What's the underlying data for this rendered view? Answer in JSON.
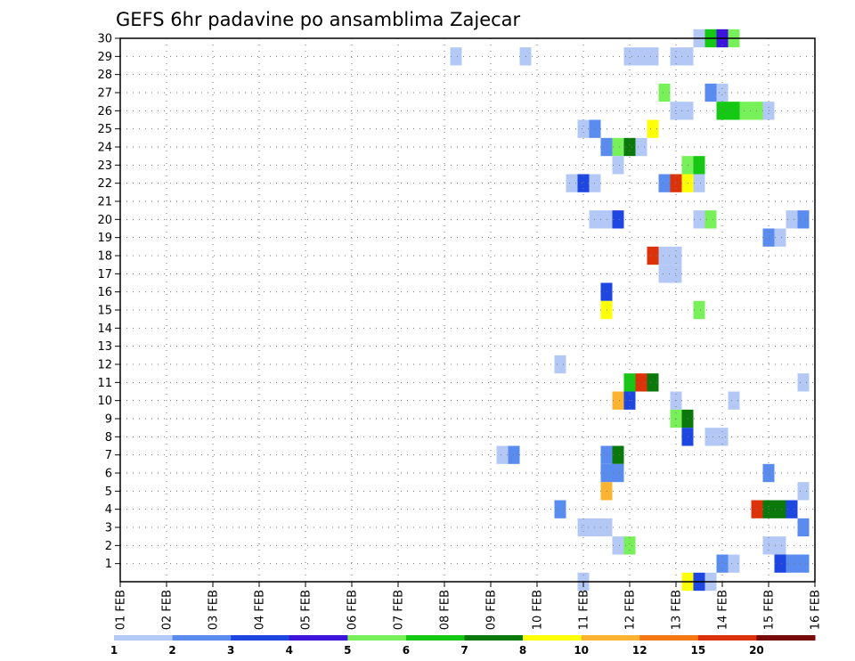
{
  "chart_data": {
    "type": "heatmap",
    "title": "GEFS 6hr padavine po ansamblima Zajecar",
    "x_ticks": [
      "01 FEB",
      "02 FEB",
      "03 FEB",
      "04 FEB",
      "05 FEB",
      "06 FEB",
      "07 FEB",
      "08 FEB",
      "09 FEB",
      "10 FEB",
      "11 FEB",
      "12 FEB",
      "13 FEB",
      "14 FEB",
      "15 FEB",
      "16 FEB"
    ],
    "xlim_days": [
      1,
      16
    ],
    "y_ticks": [
      1,
      2,
      3,
      4,
      5,
      6,
      7,
      8,
      9,
      10,
      11,
      12,
      13,
      14,
      15,
      16,
      17,
      18,
      19,
      20,
      21,
      22,
      23,
      24,
      25,
      26,
      27,
      28,
      29,
      30
    ],
    "ylim": [
      0,
      30
    ],
    "grid": true,
    "legend": {
      "placement": "bottom",
      "labels": [
        "1",
        "2",
        "3",
        "4",
        "5",
        "6",
        "7",
        "8",
        "10",
        "12",
        "15",
        "20"
      ],
      "colors": [
        "#b4c8f5",
        "#5a8cf0",
        "#1e46e1",
        "#3c14dc",
        "#78f05a",
        "#14c814",
        "#0a780a",
        "#ffff0a",
        "#fab432",
        "#f57814",
        "#dc320a",
        "#780a0a"
      ]
    },
    "cell_columns": [
      "day",
      "member",
      "level"
    ],
    "cells": [
      [
        8.25,
        29,
        1
      ],
      [
        9.75,
        29,
        1
      ],
      [
        12,
        29,
        1
      ],
      [
        12.25,
        29,
        1
      ],
      [
        12.5,
        29,
        1
      ],
      [
        13,
        29,
        1
      ],
      [
        13.25,
        29,
        1
      ],
      [
        13.5,
        30,
        1
      ],
      [
        13.75,
        30,
        6
      ],
      [
        14,
        30,
        4
      ],
      [
        14.25,
        30,
        5
      ],
      [
        12.75,
        27,
        5
      ],
      [
        13.75,
        27,
        2
      ],
      [
        14,
        27,
        1
      ],
      [
        13,
        26,
        1
      ],
      [
        13.25,
        26,
        1
      ],
      [
        14,
        26,
        6
      ],
      [
        14.25,
        26,
        6
      ],
      [
        14.5,
        26,
        5
      ],
      [
        14.75,
        26,
        5
      ],
      [
        15,
        26,
        1
      ],
      [
        11,
        25,
        1
      ],
      [
        11.25,
        25,
        2
      ],
      [
        12.5,
        25,
        8
      ],
      [
        11.5,
        24,
        2
      ],
      [
        11.75,
        24,
        5
      ],
      [
        12,
        24,
        7
      ],
      [
        12.25,
        24,
        1
      ],
      [
        11.75,
        23,
        1
      ],
      [
        13.25,
        23,
        5
      ],
      [
        13.5,
        23,
        6
      ],
      [
        10.75,
        22,
        1
      ],
      [
        11,
        22,
        3
      ],
      [
        11.25,
        22,
        1
      ],
      [
        12.75,
        22,
        2
      ],
      [
        13,
        22,
        15
      ],
      [
        13.25,
        22,
        8
      ],
      [
        13.5,
        22,
        1
      ],
      [
        11.25,
        20,
        1
      ],
      [
        11.5,
        20,
        1
      ],
      [
        11.75,
        20,
        3
      ],
      [
        13.5,
        20,
        1
      ],
      [
        13.75,
        20,
        5
      ],
      [
        15.5,
        20,
        1
      ],
      [
        15.75,
        20,
        2
      ],
      [
        15,
        19,
        2
      ],
      [
        15.25,
        19,
        1
      ],
      [
        12.5,
        18,
        15
      ],
      [
        12.75,
        18,
        1
      ],
      [
        13,
        18,
        1
      ],
      [
        12.75,
        17,
        1
      ],
      [
        13,
        17,
        1
      ],
      [
        11.5,
        16,
        3
      ],
      [
        11.5,
        15,
        8
      ],
      [
        13.5,
        15,
        5
      ],
      [
        10.5,
        12,
        1
      ],
      [
        12,
        11,
        6
      ],
      [
        12.25,
        11,
        15
      ],
      [
        12.5,
        11,
        7
      ],
      [
        15.75,
        11,
        1
      ],
      [
        11.75,
        10,
        10
      ],
      [
        12,
        10,
        3
      ],
      [
        13,
        10,
        1
      ],
      [
        14.25,
        10,
        1
      ],
      [
        13,
        9,
        5
      ],
      [
        13.25,
        9,
        7
      ],
      [
        13.25,
        8,
        3
      ],
      [
        13.75,
        8,
        1
      ],
      [
        14,
        8,
        1
      ],
      [
        9.25,
        7,
        1
      ],
      [
        9.5,
        7,
        2
      ],
      [
        11.5,
        7,
        2
      ],
      [
        11.75,
        7,
        7
      ],
      [
        11.5,
        6,
        2
      ],
      [
        11.75,
        6,
        2
      ],
      [
        15,
        6,
        2
      ],
      [
        11.5,
        5,
        10
      ],
      [
        15.75,
        5,
        1
      ],
      [
        10.5,
        4,
        2
      ],
      [
        14.75,
        4,
        15
      ],
      [
        15,
        4,
        7
      ],
      [
        15.25,
        4,
        7
      ],
      [
        15.5,
        4,
        3
      ],
      [
        11,
        3,
        1
      ],
      [
        11.25,
        3,
        1
      ],
      [
        11.5,
        3,
        1
      ],
      [
        15.75,
        3,
        2
      ],
      [
        11.75,
        2,
        1
      ],
      [
        12,
        2,
        5
      ],
      [
        15,
        2,
        1
      ],
      [
        15.25,
        2,
        1
      ],
      [
        14,
        1,
        2
      ],
      [
        14.25,
        1,
        1
      ],
      [
        15.25,
        1,
        3
      ],
      [
        15.5,
        1,
        2
      ],
      [
        15.75,
        1,
        2
      ],
      [
        11,
        0,
        1
      ],
      [
        13.25,
        0,
        8
      ],
      [
        13.5,
        0,
        3
      ],
      [
        13.75,
        0,
        1
      ]
    ]
  }
}
